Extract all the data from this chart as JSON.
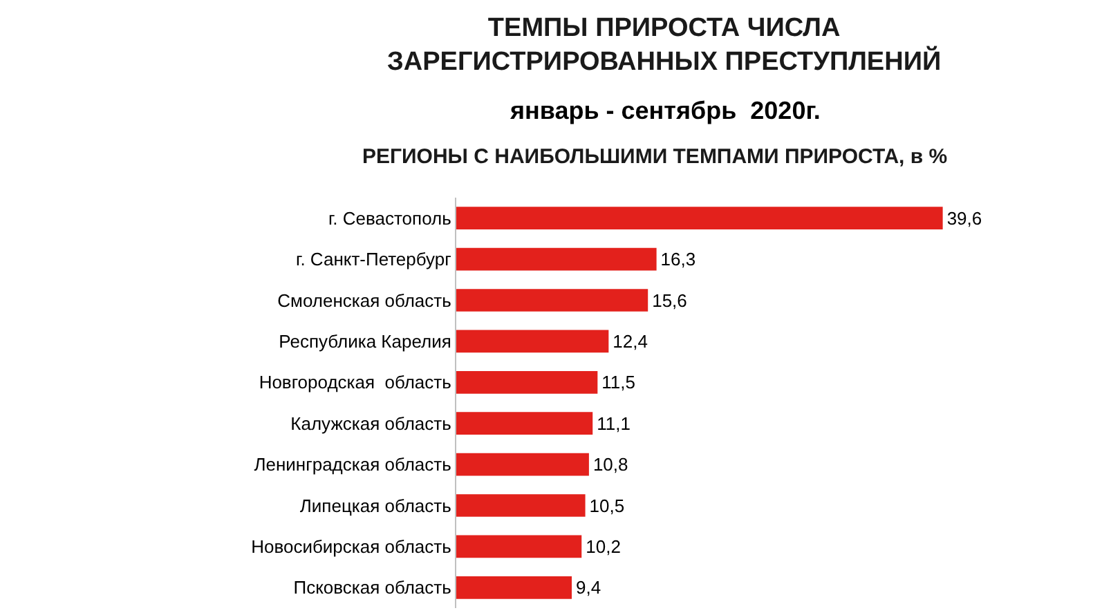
{
  "chart_data": {
    "type": "bar",
    "orientation": "horizontal",
    "title": "ТЕМПЫ ПРИРОСТА ЧИСЛА\nЗАРЕГИСТРИРОВАННЫХ ПРЕСТУПЛЕНИЙ",
    "subtitle": "январь - сентябрь  2020г.",
    "annotations": [
      "РЕГИОНЫ С НАИБОЛЬШИМИ ТЕМПАМИ ПРИРОСТА, в %"
    ],
    "categories": [
      "г. Севастополь",
      "г. Санкт-Петербург",
      "Смоленская область",
      "Республика Карелия",
      "Новгородская  область",
      "Калужская область",
      "Ленинградская область",
      "Липецкая область",
      "Новосибирская область",
      "Псковская область"
    ],
    "values": [
      39.6,
      16.3,
      15.6,
      12.4,
      11.5,
      11.1,
      10.8,
      10.5,
      10.2,
      9.4
    ],
    "value_labels": [
      "39,6",
      "16,3",
      "15,6",
      "12,4",
      "11,5",
      "11,1",
      "10,8",
      "10,5",
      "10,2",
      "9,4"
    ],
    "color": "#e3211c"
  }
}
